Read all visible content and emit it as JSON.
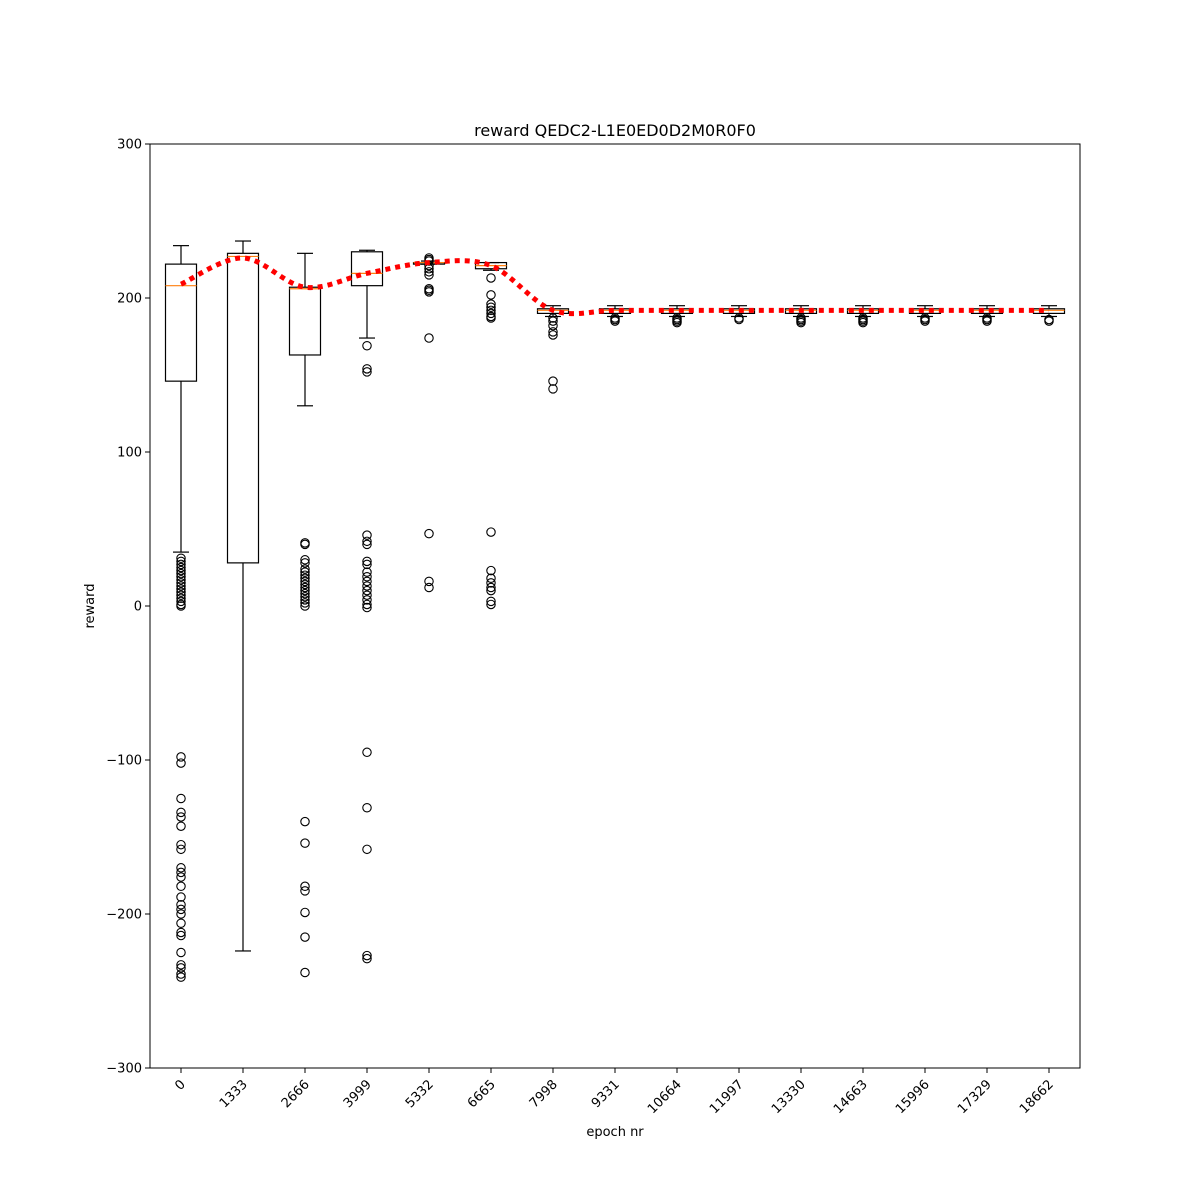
{
  "chart_data": {
    "type": "box",
    "title": "reward QEDC2-L1E0ED0D2M0R0F0",
    "xlabel": "epoch nr",
    "ylabel": "reward",
    "ylim": [
      -300,
      300
    ],
    "yticks": [
      -300,
      -200,
      -100,
      0,
      100,
      200,
      300
    ],
    "ytick_labels": [
      "−300",
      "−200",
      "−100",
      "0",
      "100",
      "200",
      "300"
    ],
    "grid": false,
    "legend": "none",
    "categories": [
      "0",
      "1333",
      "2666",
      "3999",
      "5332",
      "6665",
      "7998",
      "9331",
      "10664",
      "11997",
      "13330",
      "14663",
      "15996",
      "17329",
      "18662"
    ],
    "boxes": [
      {
        "whislo": 35,
        "q1": 146,
        "med": 208,
        "q3": 222,
        "whishi": 234,
        "fliers": [
          31,
          29,
          27,
          25,
          23,
          21,
          19,
          17,
          15,
          13,
          11,
          9,
          7,
          5,
          3,
          1,
          0,
          -98,
          -102,
          -125,
          -134,
          -137,
          -143,
          -155,
          -158,
          -170,
          -173,
          -176,
          -182,
          -189,
          -194,
          -197,
          -200,
          -206,
          -212,
          -214,
          -225,
          -233,
          -235,
          -239,
          -241
        ]
      },
      {
        "whislo": -224,
        "q1": 28,
        "med": 227,
        "q3": 229,
        "whishi": 237,
        "fliers": []
      },
      {
        "whislo": 130,
        "q1": 163,
        "med": 206,
        "q3": 207,
        "whishi": 229,
        "fliers": [
          41,
          40,
          30,
          28,
          24,
          22,
          20,
          18,
          16,
          14,
          12,
          10,
          8,
          6,
          4,
          2,
          0,
          -140,
          -154,
          -182,
          -185,
          -199,
          -215,
          -238
        ]
      },
      {
        "whislo": 174,
        "q1": 208,
        "med": 216,
        "q3": 230,
        "whishi": 231,
        "fliers": [
          169,
          154,
          152,
          46,
          42,
          40,
          29,
          27,
          22,
          19,
          16,
          13,
          10,
          7,
          4,
          1,
          -1,
          -95,
          -131,
          -158,
          -227,
          -229
        ]
      },
      {
        "whislo": 222,
        "q1": 222,
        "med": 223,
        "q3": 223,
        "whishi": 224,
        "fliers": [
          226,
          225,
          224,
          221,
          219,
          217,
          215,
          206,
          205,
          204,
          174,
          47,
          16,
          12
        ]
      },
      {
        "whislo": 218,
        "q1": 219,
        "med": 221,
        "q3": 223,
        "whishi": 223,
        "fliers": [
          213,
          202,
          196,
          194,
          192,
          190,
          188,
          187,
          48,
          23,
          18,
          15,
          12,
          10,
          3,
          1
        ]
      },
      {
        "whislo": 188,
        "q1": 190,
        "med": 192,
        "q3": 193,
        "whishi": 195,
        "fliers": [
          187,
          185,
          182,
          178,
          176,
          146,
          141
        ]
      },
      {
        "whislo": 188,
        "q1": 190,
        "med": 192,
        "q3": 193,
        "whishi": 195,
        "fliers": [
          187,
          186,
          185
        ]
      },
      {
        "whislo": 188,
        "q1": 190,
        "med": 192,
        "q3": 193,
        "whishi": 195,
        "fliers": [
          187,
          186,
          185,
          184
        ]
      },
      {
        "whislo": 188,
        "q1": 190,
        "med": 192,
        "q3": 193,
        "whishi": 195,
        "fliers": [
          187,
          186
        ]
      },
      {
        "whislo": 188,
        "q1": 190,
        "med": 192,
        "q3": 193,
        "whishi": 195,
        "fliers": [
          187,
          186,
          185,
          184
        ]
      },
      {
        "whislo": 188,
        "q1": 190,
        "med": 192,
        "q3": 193,
        "whishi": 195,
        "fliers": [
          187,
          186,
          185,
          184
        ]
      },
      {
        "whislo": 188,
        "q1": 190,
        "med": 192,
        "q3": 193,
        "whishi": 195,
        "fliers": [
          187,
          186,
          185
        ]
      },
      {
        "whislo": 188,
        "q1": 190,
        "med": 192,
        "q3": 193,
        "whishi": 195,
        "fliers": [
          187,
          186,
          185
        ]
      },
      {
        "whislo": 188,
        "q1": 190,
        "med": 192,
        "q3": 193,
        "whishi": 195,
        "fliers": [
          186,
          185
        ]
      }
    ],
    "mean_line": {
      "values": [
        209,
        226,
        207,
        216,
        223,
        221,
        192,
        192,
        192,
        192,
        192,
        192,
        192,
        192,
        192
      ],
      "color": "#ff0000",
      "style": "dotted"
    },
    "colors": {
      "box": "#000000",
      "median": "#ff7f0e",
      "mean_line": "#ff0000"
    }
  }
}
